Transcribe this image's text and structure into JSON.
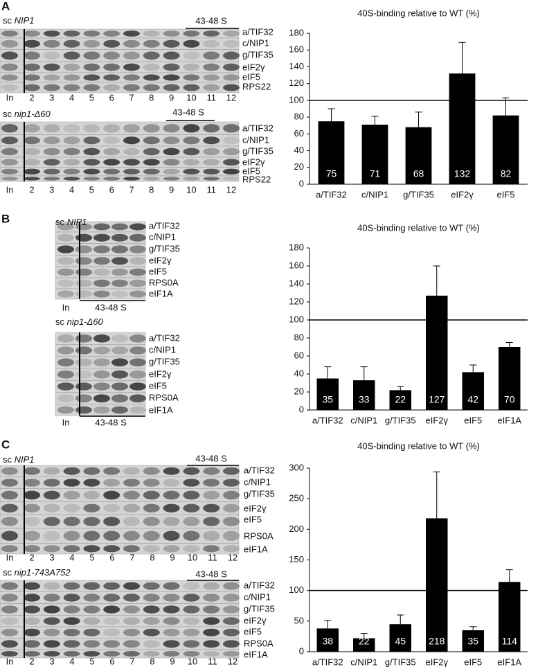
{
  "panels": [
    {
      "letter": "A",
      "blots": [
        {
          "prefix": "sc",
          "strain": "NIP1",
          "fraction": "43-48 S",
          "proteins": [
            "a/TIF32",
            "c/NIP1",
            "g/TIF35",
            "eIF2γ",
            "eIF5",
            "RPS22"
          ],
          "lanes": [
            "In",
            "2",
            "3",
            "4",
            "5",
            "6",
            "7",
            "8",
            "9",
            "10",
            "11",
            "12"
          ]
        },
        {
          "prefix": "sc",
          "strain": "nip1-Δ60",
          "fraction": "43-48 S",
          "proteins": [
            "a/TIF32",
            "c/NIP1",
            "g/TIF35",
            "eIF2γ",
            "eIF5",
            "RPS22"
          ],
          "lanes": [
            "In",
            "2",
            "3",
            "4",
            "5",
            "6",
            "7",
            "8",
            "9",
            "10",
            "11",
            "12"
          ]
        }
      ]
    },
    {
      "letter": "B",
      "blots": [
        {
          "prefix": "sc",
          "strain": "NIP1",
          "fraction": "43-48 S",
          "proteins": [
            "a/TIF32",
            "c/NIP1",
            "g/TIF35",
            "eIF2γ",
            "eIF5",
            "RPS0A",
            "eIF1A"
          ],
          "lanes": [
            "In"
          ]
        },
        {
          "prefix": "sc",
          "strain": "nip1-Δ60",
          "fraction": "43-48 S",
          "proteins": [
            "a/TIF32",
            "c/NIP1",
            "g/TIF35",
            "eIF2γ",
            "eIF5",
            "RPS0A",
            "eIF1A"
          ],
          "lanes": [
            "In"
          ]
        }
      ]
    },
    {
      "letter": "C",
      "blots": [
        {
          "prefix": "sc",
          "strain": "NIP1",
          "fraction": "43-48 S",
          "proteins": [
            "a/TIF32",
            "c/NIP1",
            "g/TIF35",
            "eIF2γ",
            "eIF5",
            "RPS0A",
            "eIF1A"
          ],
          "lanes": [
            "In",
            "2",
            "3",
            "4",
            "5",
            "6",
            "7",
            "8",
            "9",
            "10",
            "11",
            "12"
          ]
        },
        {
          "prefix": "sc",
          "strain": "nip1-743A752",
          "fraction": "43-48 S",
          "proteins": [
            "a/TIF32",
            "c/NIP1",
            "g/TIF35",
            "eIF2γ",
            "eIF5",
            "RPS0A",
            "eIF1A"
          ],
          "lanes": [
            "In",
            "2",
            "3",
            "4",
            "5",
            "6",
            "7",
            "8",
            "9",
            "10",
            "11",
            "12"
          ]
        }
      ]
    }
  ],
  "chart_data": [
    {
      "type": "bar",
      "title": "40S-binding relative to WT (%)",
      "categories": [
        "a/TIF32",
        "c/NIP1",
        "g/TIF35",
        "eIF2γ",
        "eIF5"
      ],
      "values": [
        75,
        71,
        68,
        132,
        82
      ],
      "errors": [
        15,
        10,
        18,
        37,
        21
      ],
      "color": "#000000",
      "ylim": [
        0,
        180
      ],
      "yticks": [
        0,
        20,
        40,
        60,
        80,
        100,
        120,
        140,
        160,
        180
      ],
      "refline": 100
    },
    {
      "type": "bar",
      "title": "40S-binding relative to WT (%)",
      "categories": [
        "a/TIF32",
        "c/NIP1",
        "g/TIF35",
        "eIF2γ",
        "eIF5",
        "eIF1A"
      ],
      "values": [
        35,
        33,
        22,
        127,
        42,
        70
      ],
      "errors": [
        13,
        15,
        4,
        33,
        8,
        5
      ],
      "color": "#000000",
      "ylim": [
        0,
        180
      ],
      "yticks": [
        0,
        20,
        40,
        60,
        80,
        100,
        120,
        140,
        160,
        180
      ],
      "refline": 100
    },
    {
      "type": "bar",
      "title": "40S-binding relative to WT (%)",
      "categories": [
        "a/TIF32",
        "c/NIP1",
        "g/TIF35",
        "eIF2γ",
        "eIF5",
        "eIF1A"
      ],
      "values": [
        38,
        22,
        45,
        218,
        35,
        114
      ],
      "errors": [
        13,
        8,
        15,
        76,
        6,
        20
      ],
      "color": "#000000",
      "ylim": [
        0,
        300
      ],
      "yticks": [
        0,
        50,
        100,
        150,
        200,
        250,
        300
      ],
      "refline": 100
    }
  ]
}
